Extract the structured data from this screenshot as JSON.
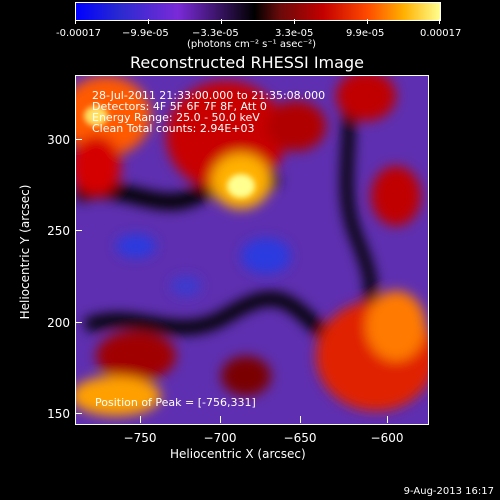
{
  "colorbar": {
    "ticks": [
      "-0.00017",
      "−9.9e-05",
      "−3.3e-05",
      "3.3e-05",
      "9.9e-05",
      "0.00017"
    ],
    "unit_label": "(photons cm⁻² s⁻¹ asec⁻²)"
  },
  "plot": {
    "title": "Reconstructed RHESSI Image",
    "xlabel": "Heliocentric X (arcsec)",
    "ylabel": "Heliocentric Y (arcsec)",
    "x_ticks": [
      "−750",
      "−700",
      "−650",
      "−600"
    ],
    "y_ticks": [
      "300",
      "250",
      "200",
      "150"
    ],
    "overlay_lines": [
      "28-Jul-2011 21:33:00.000 to 21:35:08.000",
      "Detectors: 4F 5F 6F 7F 8F, Att 0",
      "Energy Range: 25.0 - 50.0 keV",
      "Clean      Total counts: 2.94E+03"
    ],
    "peak_text": "Position of Peak = [-756,331]"
  },
  "footer": {
    "date": "9-Aug-2013 16:17"
  }
}
